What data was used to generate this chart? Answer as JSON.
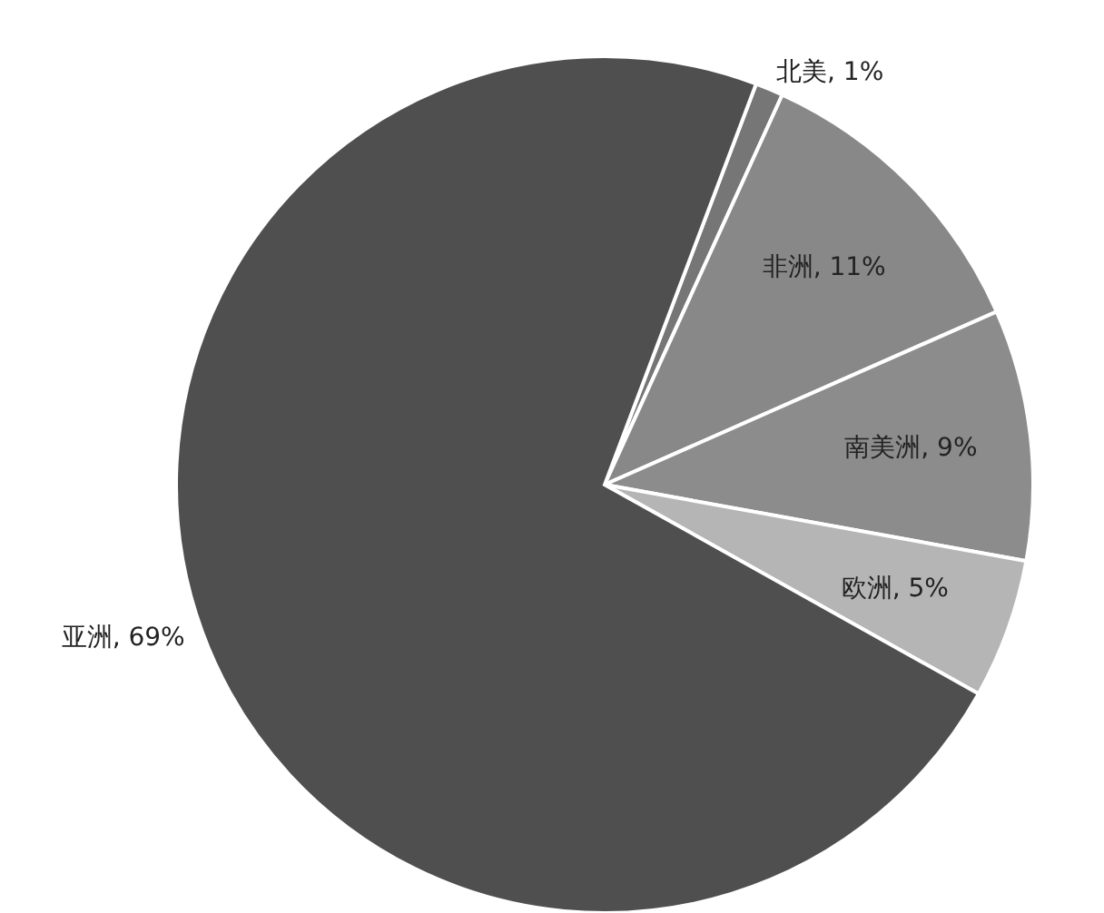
{
  "chart_data": {
    "type": "pie",
    "categories": [
      "北美",
      "非洲",
      "南美洲",
      "欧洲",
      "亚洲"
    ],
    "values": [
      1,
      11,
      9,
      5,
      69
    ],
    "value_labels": [
      "1%",
      "11%",
      "9%",
      "5%",
      "69%"
    ],
    "colors": [
      "#767676",
      "#888888",
      "#8c8c8c",
      "#b5b5b5",
      "#4f4f4f"
    ]
  }
}
